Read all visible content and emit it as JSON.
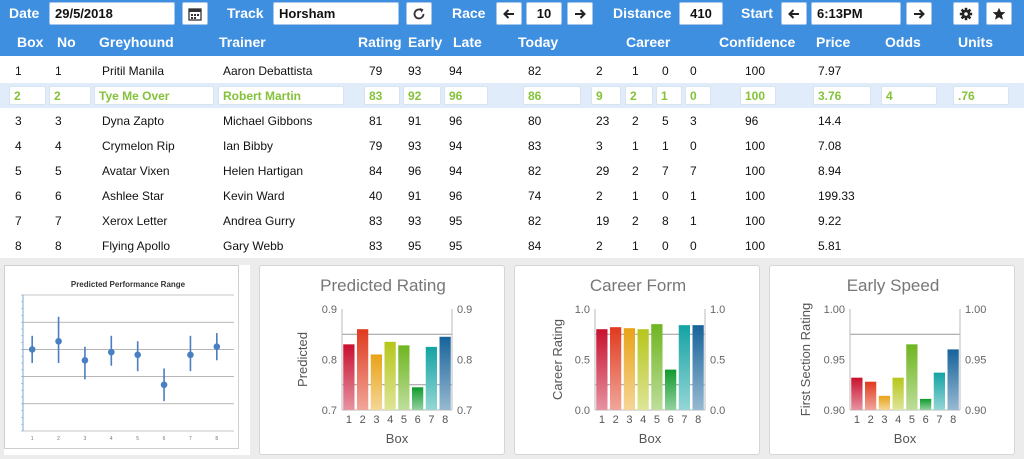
{
  "toolbar": {
    "date_label": "Date",
    "date_value": "29/5/2018",
    "track_label": "Track",
    "track_value": "Horsham",
    "race_label": "Race",
    "race_value": "10",
    "distance_label": "Distance",
    "distance_value": "410",
    "start_label": "Start",
    "start_value": "6:13PM",
    "icons": [
      "calendar-icon",
      "refresh-icon",
      "arrow-left-icon",
      "arrow-right-icon",
      "gear-icon",
      "star-icon"
    ]
  },
  "columns": {
    "box": "Box",
    "no": "No",
    "greyhound": "Greyhound",
    "trainer": "Trainer",
    "rating": "Rating",
    "early": "Early",
    "late": "Late",
    "today": "Today",
    "career": "Career",
    "confidence": "Confidence",
    "price": "Price",
    "odds": "Odds",
    "units": "Units"
  },
  "rows": [
    {
      "box": "1",
      "no": "1",
      "greyhound": "Pritil Manila",
      "trainer": "Aaron Debattista",
      "rating": "79",
      "early": "93",
      "late": "94",
      "today": "82",
      "c1": "2",
      "c2": "1",
      "c3": "0",
      "c4": "0",
      "confidence": "100",
      "price": "7.97",
      "odds": "",
      "units": ""
    },
    {
      "box": "2",
      "no": "2",
      "greyhound": "Tye Me Over",
      "trainer": "Robert Martin",
      "rating": "83",
      "early": "92",
      "late": "96",
      "today": "86",
      "c1": "9",
      "c2": "2",
      "c3": "1",
      "c4": "0",
      "confidence": "100",
      "price": "3.76",
      "odds": "4",
      "units": ".76"
    },
    {
      "box": "3",
      "no": "3",
      "greyhound": "Dyna Zapto",
      "trainer": "Michael Gibbons",
      "rating": "81",
      "early": "91",
      "late": "96",
      "today": "80",
      "c1": "23",
      "c2": "2",
      "c3": "5",
      "c4": "3",
      "confidence": "96",
      "price": "14.4",
      "odds": "",
      "units": ""
    },
    {
      "box": "4",
      "no": "4",
      "greyhound": "Crymelon Rip",
      "trainer": "Ian Bibby",
      "rating": "79",
      "early": "93",
      "late": "94",
      "today": "83",
      "c1": "3",
      "c2": "1",
      "c3": "1",
      "c4": "0",
      "confidence": "100",
      "price": "7.08",
      "odds": "",
      "units": ""
    },
    {
      "box": "5",
      "no": "5",
      "greyhound": "Avatar Vixen",
      "trainer": "Helen Hartigan",
      "rating": "84",
      "early": "96",
      "late": "94",
      "today": "82",
      "c1": "29",
      "c2": "2",
      "c3": "7",
      "c4": "7",
      "confidence": "100",
      "price": "8.94",
      "odds": "",
      "units": ""
    },
    {
      "box": "6",
      "no": "6",
      "greyhound": "Ashlee Star",
      "trainer": "Kevin Ward",
      "rating": "40",
      "early": "91",
      "late": "96",
      "today": "74",
      "c1": "2",
      "c2": "1",
      "c3": "0",
      "c4": "1",
      "confidence": "100",
      "price": "199.33",
      "odds": "",
      "units": ""
    },
    {
      "box": "7",
      "no": "7",
      "greyhound": "Xerox Letter",
      "trainer": "Andrea Gurry",
      "rating": "83",
      "early": "93",
      "late": "95",
      "today": "82",
      "c1": "19",
      "c2": "2",
      "c3": "8",
      "c4": "1",
      "confidence": "100",
      "price": "9.22",
      "odds": "",
      "units": ""
    },
    {
      "box": "8",
      "no": "8",
      "greyhound": "Flying Apollo",
      "trainer": "Gary Webb",
      "rating": "83",
      "early": "95",
      "late": "95",
      "today": "84",
      "c1": "2",
      "c2": "1",
      "c3": "0",
      "c4": "0",
      "confidence": "100",
      "price": "5.81",
      "odds": "",
      "units": ""
    }
  ],
  "selected_row": 1,
  "colors": {
    "header_bg": "#3f8fe0",
    "selected_text": "#84c23a",
    "selected_row_bg": "#e0ecfa",
    "bar_colors": [
      "#c8102e",
      "#e03a1e",
      "#e8a317",
      "#b6c61a",
      "#6fb520",
      "#0f9a2c",
      "#14a3a3",
      "#17639a"
    ]
  },
  "chart_data": [
    {
      "type": "scatter",
      "title": "Predicted Performance Range",
      "x": [
        1,
        2,
        3,
        4,
        5,
        6,
        7,
        8
      ],
      "y": [
        0.8,
        0.83,
        0.76,
        0.79,
        0.78,
        0.67,
        0.78,
        0.81
      ],
      "y_low": [
        0.75,
        0.75,
        0.69,
        0.74,
        0.72,
        0.61,
        0.72,
        0.76
      ],
      "y_high": [
        0.85,
        0.92,
        0.81,
        0.85,
        0.83,
        0.73,
        0.85,
        0.86
      ],
      "ylim": [
        0.5,
        1.0
      ],
      "x_ticks": [
        "1",
        "2",
        "3",
        "4",
        "5",
        "6",
        "7",
        "8"
      ],
      "grid": true
    },
    {
      "type": "bar",
      "title": "Predicted Rating",
      "categories": [
        "1",
        "2",
        "3",
        "4",
        "5",
        "6",
        "7",
        "8"
      ],
      "values": [
        0.83,
        0.86,
        0.81,
        0.835,
        0.828,
        0.745,
        0.825,
        0.845
      ],
      "xlabel": "Box",
      "ylabel": "Predicted",
      "ylim": [
        0.7,
        0.9
      ],
      "y_ticks": [
        "0.7",
        "0.8",
        "0.9"
      ],
      "reference_lines": [
        0.85,
        0.75
      ]
    },
    {
      "type": "bar",
      "title": "Career Form",
      "categories": [
        "1",
        "2",
        "3",
        "4",
        "5",
        "6",
        "7",
        "8"
      ],
      "values": [
        0.8,
        0.82,
        0.81,
        0.8,
        0.85,
        0.4,
        0.84,
        0.84
      ],
      "xlabel": "Box",
      "ylabel": "Career Rating",
      "ylim": [
        0.0,
        1.0
      ],
      "y_ticks": [
        "0.0",
        "0.5",
        "1.0"
      ],
      "reference_lines": [
        0.75,
        0.25
      ]
    },
    {
      "type": "bar",
      "title": "Early Speed",
      "categories": [
        "1",
        "2",
        "3",
        "4",
        "5",
        "6",
        "7",
        "8"
      ],
      "values": [
        0.932,
        0.928,
        0.914,
        0.932,
        0.965,
        0.911,
        0.937,
        0.96
      ],
      "xlabel": "Box",
      "ylabel": "First Section Rating",
      "ylim": [
        0.9,
        1.0
      ],
      "y_ticks": [
        "0.90",
        "0.95",
        "1.00"
      ],
      "reference_lines": [
        0.975
      ]
    }
  ]
}
